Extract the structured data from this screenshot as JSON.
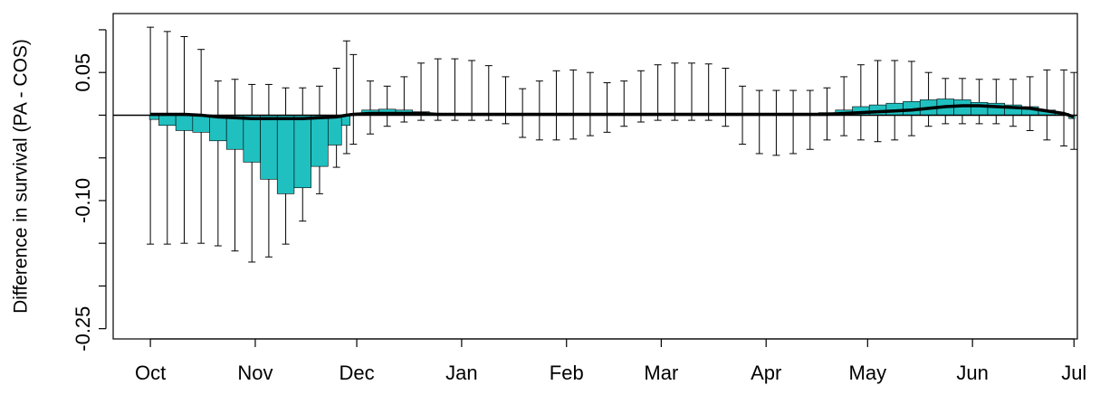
{
  "chart_data": {
    "type": "interval",
    "ylabel": "Difference in survival (PA - COS)",
    "xlim": [
      -11,
      274
    ],
    "ylim": [
      -0.262,
      0.119
    ],
    "xticks": [
      {
        "value": 0,
        "label": "Oct"
      },
      {
        "value": 31,
        "label": "Nov"
      },
      {
        "value": 61,
        "label": "Dec"
      },
      {
        "value": 92,
        "label": "Jan"
      },
      {
        "value": 123,
        "label": "Feb"
      },
      {
        "value": 151,
        "label": "Mar"
      },
      {
        "value": 182,
        "label": "Apr"
      },
      {
        "value": 212,
        "label": "May"
      },
      {
        "value": 243,
        "label": "Jun"
      },
      {
        "value": 273,
        "label": "Jul"
      }
    ],
    "yticks": [
      0.05,
      {
        "value": -0.1,
        "label": "-0.10"
      },
      -0.25
    ],
    "yminor": [
      0.1,
      0,
      -0.05,
      -0.15,
      -0.2
    ],
    "hline": 0,
    "interval_color": "#000000",
    "estimate_color": "#20c0c0",
    "line_color": "#000000",
    "x": [
      0,
      5,
      10,
      15,
      20,
      25,
      30,
      35,
      40,
      45,
      50,
      55,
      58,
      60,
      65,
      70,
      75,
      80,
      85,
      90,
      95,
      100,
      105,
      110,
      115,
      120,
      125,
      130,
      135,
      140,
      145,
      150,
      155,
      160,
      165,
      170,
      175,
      180,
      185,
      190,
      195,
      200,
      205,
      210,
      215,
      220,
      225,
      230,
      235,
      240,
      245,
      250,
      255,
      260,
      265,
      270,
      273
    ],
    "upper": [
      0.103,
      0.098,
      0.092,
      0.077,
      0.04,
      0.042,
      0.036,
      0.036,
      0.032,
      0.032,
      0.034,
      0.055,
      0.087,
      0.071,
      0.04,
      0.034,
      0.045,
      0.061,
      0.066,
      0.066,
      0.064,
      0.058,
      0.045,
      0.031,
      0.04,
      0.052,
      0.053,
      0.05,
      0.038,
      0.04,
      0.052,
      0.059,
      0.061,
      0.061,
      0.06,
      0.055,
      0.034,
      0.029,
      0.029,
      0.029,
      0.029,
      0.032,
      0.045,
      0.059,
      0.064,
      0.064,
      0.063,
      0.05,
      0.043,
      0.043,
      0.042,
      0.042,
      0.042,
      0.045,
      0.053,
      0.053,
      0.05
    ],
    "lower": [
      -0.151,
      -0.151,
      -0.15,
      -0.15,
      -0.153,
      -0.159,
      -0.172,
      -0.166,
      -0.151,
      -0.124,
      -0.092,
      -0.061,
      -0.045,
      -0.034,
      -0.022,
      -0.013,
      -0.008,
      -0.006,
      -0.006,
      -0.006,
      -0.006,
      -0.006,
      -0.01,
      -0.026,
      -0.029,
      -0.029,
      -0.028,
      -0.024,
      -0.02,
      -0.013,
      -0.008,
      -0.006,
      -0.006,
      -0.006,
      -0.006,
      -0.013,
      -0.034,
      -0.045,
      -0.047,
      -0.045,
      -0.04,
      -0.029,
      -0.024,
      -0.029,
      -0.031,
      -0.029,
      -0.024,
      -0.013,
      -0.01,
      -0.01,
      -0.01,
      -0.01,
      -0.013,
      -0.018,
      -0.029,
      -0.036,
      -0.04
    ],
    "estimate": [
      -0.005,
      -0.012,
      -0.018,
      -0.02,
      -0.03,
      -0.04,
      -0.055,
      -0.075,
      -0.092,
      -0.085,
      -0.06,
      -0.035,
      -0.012,
      0.002,
      0.006,
      0.007,
      0.006,
      0.004,
      0.002,
      0.001,
      0.001,
      0.001,
      0.001,
      0.001,
      0.001,
      0.001,
      0.001,
      0.001,
      0.001,
      0.001,
      0.001,
      0.001,
      0.001,
      0.001,
      0.001,
      0.001,
      0.001,
      0.001,
      0.001,
      0.001,
      0.001,
      0.003,
      0.006,
      0.01,
      0.012,
      0.014,
      0.016,
      0.018,
      0.019,
      0.018,
      0.015,
      0.014,
      0.012,
      0.01,
      0.006,
      0.002,
      -0.004
    ],
    "line": [
      0.001,
      0.001,
      0.001,
      0,
      -0.002,
      -0.003,
      -0.004,
      -0.004,
      -0.004,
      -0.004,
      -0.003,
      -0.002,
      0,
      0.001,
      0.002,
      0.002,
      0.002,
      0.002,
      0.001,
      0.001,
      0.001,
      0.001,
      0.001,
      0.001,
      0.001,
      0.001,
      0.001,
      0.001,
      0.001,
      0.001,
      0.001,
      0.001,
      0.001,
      0.001,
      0.001,
      0.001,
      0.001,
      0.001,
      0.001,
      0.001,
      0.001,
      0.001,
      0.002,
      0.003,
      0.004,
      0.005,
      0.006,
      0.008,
      0.01,
      0.011,
      0.011,
      0.01,
      0.009,
      0.008,
      0.005,
      0.002,
      -0.002
    ]
  }
}
